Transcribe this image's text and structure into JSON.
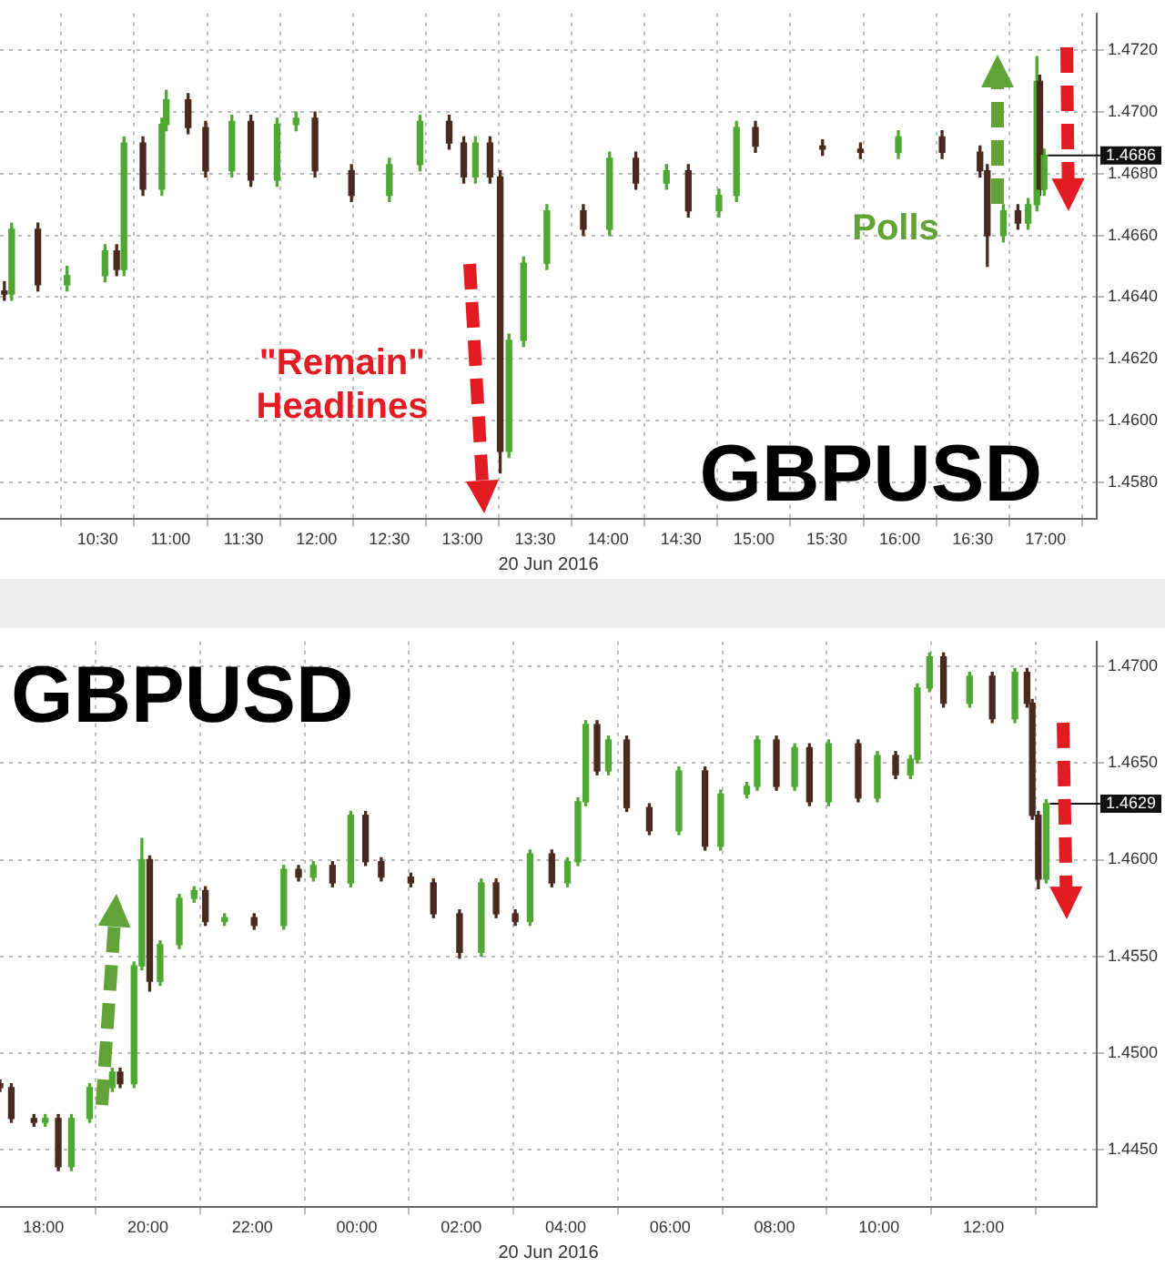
{
  "chart_data": [
    {
      "type": "candlestick",
      "title": "GBPUSD",
      "xlabel": "20 Jun 2016",
      "grid": true,
      "annotations": [
        "\"Remain\" Headlines",
        "Polls",
        {
          "text": "1.4686",
          "x": 16.99,
          "y": 1.4686
        }
      ],
      "xlim": [
        9.83,
        17.35
      ],
      "xticks": [
        {
          "value": 10.5,
          "label": "10:30"
        },
        {
          "value": 11,
          "label": "11:00"
        },
        {
          "value": 11.5,
          "label": "11:30"
        },
        {
          "value": 12,
          "label": "12:00"
        },
        {
          "value": 12.5,
          "label": "12:30"
        },
        {
          "value": 13,
          "label": "13:00"
        },
        {
          "value": 13.5,
          "label": "13:30"
        },
        {
          "value": 14,
          "label": "14:00"
        },
        {
          "value": 14.5,
          "label": "14:30"
        },
        {
          "value": 15,
          "label": "15:00"
        },
        {
          "value": 15.5,
          "label": "15:30"
        },
        {
          "value": 16,
          "label": "16:00"
        },
        {
          "value": 16.5,
          "label": "16:30"
        },
        {
          "value": 17,
          "label": "17:00"
        }
      ],
      "ylim": [
        1.4568,
        1.4732
      ],
      "yticks": [
        {
          "value": 1.458,
          "label": "1.4580"
        },
        {
          "value": 1.46,
          "label": "1.4600"
        },
        {
          "value": 1.462,
          "label": "1.4620"
        },
        {
          "value": 1.464,
          "label": "1.4640"
        },
        {
          "value": 1.466,
          "label": "1.4660"
        },
        {
          "value": 1.468,
          "label": "1.4680"
        },
        {
          "value": 1.47,
          "label": "1.4700"
        },
        {
          "value": 1.472,
          "label": "1.4720"
        }
      ],
      "x": [
        9.86,
        9.91,
        10.09,
        10.29,
        10.55,
        10.63,
        10.68,
        10.81,
        10.94,
        10.97,
        11.12,
        11.24,
        11.42,
        11.55,
        11.73,
        11.86,
        11.99,
        12.24,
        12.5,
        12.71,
        12.91,
        13.01,
        13.09,
        13.19,
        13.26,
        13.32,
        13.42,
        13.58,
        13.83,
        14.01,
        14.19,
        14.4,
        14.55,
        14.76,
        14.88,
        15.01,
        15.47,
        15.73,
        15.99,
        16.29,
        16.55,
        16.6,
        16.71,
        16.81,
        16.88,
        16.94,
        16.96,
        16.99
      ],
      "ohlc": [
        [
          1.4642,
          1.4645,
          1.4639,
          1.4641
        ],
        [
          1.4641,
          1.4664,
          1.4639,
          1.4662
        ],
        [
          1.4662,
          1.4664,
          1.4642,
          1.4644
        ],
        [
          1.4644,
          1.465,
          1.4642,
          1.4647
        ],
        [
          1.4647,
          1.4657,
          1.4645,
          1.4655
        ],
        [
          1.4655,
          1.4657,
          1.4647,
          1.4649
        ],
        [
          1.4649,
          1.4692,
          1.4647,
          1.469
        ],
        [
          1.469,
          1.4692,
          1.4673,
          1.4675
        ],
        [
          1.4675,
          1.4698,
          1.4673,
          1.4696
        ],
        [
          1.4696,
          1.4707,
          1.4694,
          1.4704
        ],
        [
          1.4704,
          1.4706,
          1.4693,
          1.4695
        ],
        [
          1.4695,
          1.4697,
          1.4679,
          1.4681
        ],
        [
          1.4681,
          1.4699,
          1.4679,
          1.4697
        ],
        [
          1.4697,
          1.4699,
          1.4676,
          1.4678
        ],
        [
          1.4678,
          1.4698,
          1.4676,
          1.4696
        ],
        [
          1.4696,
          1.47,
          1.4694,
          1.4698
        ],
        [
          1.4698,
          1.47,
          1.4679,
          1.4681
        ],
        [
          1.4681,
          1.4683,
          1.4671,
          1.4673
        ],
        [
          1.4673,
          1.4685,
          1.4671,
          1.4683
        ],
        [
          1.4683,
          1.4699,
          1.4681,
          1.4697
        ],
        [
          1.4697,
          1.4699,
          1.4688,
          1.469
        ],
        [
          1.469,
          1.4692,
          1.4677,
          1.4679
        ],
        [
          1.4679,
          1.4692,
          1.4677,
          1.469
        ],
        [
          1.469,
          1.4692,
          1.4677,
          1.4679
        ],
        [
          1.4679,
          1.4681,
          1.4583,
          1.459
        ],
        [
          1.459,
          1.4628,
          1.4588,
          1.4626
        ],
        [
          1.4626,
          1.4653,
          1.4624,
          1.4651
        ],
        [
          1.4651,
          1.467,
          1.4649,
          1.4668
        ],
        [
          1.4668,
          1.467,
          1.466,
          1.4662
        ],
        [
          1.4662,
          1.4687,
          1.466,
          1.4685
        ],
        [
          1.4685,
          1.4687,
          1.4675,
          1.4677
        ],
        [
          1.4677,
          1.4683,
          1.4675,
          1.4681
        ],
        [
          1.4681,
          1.4683,
          1.4666,
          1.4668
        ],
        [
          1.4668,
          1.4675,
          1.4666,
          1.4673
        ],
        [
          1.4673,
          1.4697,
          1.4671,
          1.4695
        ],
        [
          1.4695,
          1.4697,
          1.4687,
          1.4689
        ],
        [
          1.4689,
          1.4691,
          1.4686,
          1.4688
        ],
        [
          1.4688,
          1.469,
          1.4685,
          1.4687
        ],
        [
          1.4687,
          1.4694,
          1.4685,
          1.4692
        ],
        [
          1.4692,
          1.4694,
          1.4685,
          1.4687
        ],
        [
          1.4687,
          1.4689,
          1.4679,
          1.4681
        ],
        [
          1.4681,
          1.4683,
          1.465,
          1.466
        ],
        [
          1.466,
          1.467,
          1.4658,
          1.4668
        ],
        [
          1.4668,
          1.467,
          1.4662,
          1.4664
        ],
        [
          1.4664,
          1.4672,
          1.4662,
          1.467
        ],
        [
          1.467,
          1.4718,
          1.4668,
          1.471
        ],
        [
          1.471,
          1.4712,
          1.4673,
          1.4675
        ],
        [
          1.4675,
          1.4688,
          1.4673,
          1.4686
        ]
      ]
    },
    {
      "type": "candlestick",
      "title": "GBPUSD",
      "xlabel": "20 Jun 2016",
      "grid": true,
      "annotations": [
        {
          "text": "1.4629",
          "x": "2016-06-20T13:12",
          "y": 1.4629
        }
      ],
      "xlim": [
        "2016-06-19T17:10",
        "2016-06-20T14:10"
      ],
      "xticks": [
        {
          "value": "2016-06-19T18:00",
          "label": "18:00"
        },
        {
          "value": "2016-06-19T20:00",
          "label": "20:00"
        },
        {
          "value": "2016-06-19T22:00",
          "label": "22:00"
        },
        {
          "value": "2016-06-20T00:00",
          "label": "00:00"
        },
        {
          "value": "2016-06-20T02:00",
          "label": "02:00"
        },
        {
          "value": "2016-06-20T04:00",
          "label": "04:00"
        },
        {
          "value": "2016-06-20T06:00",
          "label": "06:00"
        },
        {
          "value": "2016-06-20T08:00",
          "label": "08:00"
        },
        {
          "value": "2016-06-20T10:00",
          "label": "10:00"
        },
        {
          "value": "2016-06-20T12:00",
          "label": "12:00"
        }
      ],
      "ylim": [
        1.442,
        1.4713
      ],
      "yticks": [
        {
          "value": 1.445,
          "label": "1.4450"
        },
        {
          "value": 1.45,
          "label": "1.4500"
        },
        {
          "value": 1.455,
          "label": "1.4550"
        },
        {
          "value": 1.46,
          "label": "1.4600"
        },
        {
          "value": 1.465,
          "label": "1.4650"
        },
        {
          "value": 1.47,
          "label": "1.4700"
        }
      ],
      "x": [
        "2016-06-19T17:10",
        "2016-06-19T17:23",
        "2016-06-19T17:49",
        "2016-06-19T18:02",
        "2016-06-19T18:17",
        "2016-06-19T18:32",
        "2016-06-19T18:53",
        "2016-06-19T19:19",
        "2016-06-19T19:28",
        "2016-06-19T19:44",
        "2016-06-19T19:53",
        "2016-06-19T20:02",
        "2016-06-19T20:14",
        "2016-06-19T20:36",
        "2016-06-19T20:53",
        "2016-06-19T21:06",
        "2016-06-19T21:28",
        "2016-06-19T22:02",
        "2016-06-19T22:36",
        "2016-06-19T22:53",
        "2016-06-19T23:10",
        "2016-06-19T23:32",
        "2016-06-19T23:53",
        "2016-06-20T00:10",
        "2016-06-20T00:28",
        "2016-06-20T01:02",
        "2016-06-20T01:28",
        "2016-06-20T01:58",
        "2016-06-20T02:23",
        "2016-06-20T02:40",
        "2016-06-20T03:02",
        "2016-06-20T03:19",
        "2016-06-20T03:44",
        "2016-06-20T04:02",
        "2016-06-20T04:14",
        "2016-06-20T04:23",
        "2016-06-20T04:36",
        "2016-06-20T04:49",
        "2016-06-20T05:10",
        "2016-06-20T05:36",
        "2016-06-20T06:10",
        "2016-06-20T06:40",
        "2016-06-20T06:58",
        "2016-06-20T07:28",
        "2016-06-20T07:40",
        "2016-06-20T08:02",
        "2016-06-20T08:23",
        "2016-06-20T08:40",
        "2016-06-20T09:02",
        "2016-06-20T09:36",
        "2016-06-20T09:58",
        "2016-06-20T10:19",
        "2016-06-20T10:36",
        "2016-06-20T10:44",
        "2016-06-20T10:58",
        "2016-06-20T11:14",
        "2016-06-20T11:44",
        "2016-06-20T12:10",
        "2016-06-20T12:36",
        "2016-06-20T12:50",
        "2016-06-20T12:56",
        "2016-06-20T13:03",
        "2016-06-20T13:12"
      ],
      "ohlc": [
        [
          1.4484,
          1.4486,
          1.448,
          1.4482
        ],
        [
          1.4482,
          1.4484,
          1.4464,
          1.4466
        ],
        [
          1.4466,
          1.4468,
          1.4462,
          1.4464
        ],
        [
          1.4464,
          1.4468,
          1.4462,
          1.4466
        ],
        [
          1.4466,
          1.4468,
          1.4439,
          1.4441
        ],
        [
          1.4441,
          1.4468,
          1.4439,
          1.4466
        ],
        [
          1.4466,
          1.4484,
          1.4464,
          1.4482
        ],
        [
          1.4482,
          1.4492,
          1.448,
          1.449
        ],
        [
          1.449,
          1.4492,
          1.4482,
          1.4484
        ],
        [
          1.4484,
          1.4547,
          1.4482,
          1.4545
        ],
        [
          1.4545,
          1.4611,
          1.4543,
          1.46
        ],
        [
          1.46,
          1.4602,
          1.4532,
          1.4537
        ],
        [
          1.4537,
          1.4558,
          1.4535,
          1.4556
        ],
        [
          1.4556,
          1.4582,
          1.4554,
          1.458
        ],
        [
          1.458,
          1.4586,
          1.4578,
          1.4584
        ],
        [
          1.4584,
          1.4586,
          1.4566,
          1.4568
        ],
        [
          1.4568,
          1.4572,
          1.4566,
          1.457
        ],
        [
          1.457,
          1.4572,
          1.4564,
          1.4566
        ],
        [
          1.4566,
          1.4597,
          1.4564,
          1.4595
        ],
        [
          1.4595,
          1.4597,
          1.4589,
          1.4591
        ],
        [
          1.4591,
          1.4599,
          1.4589,
          1.4597
        ],
        [
          1.4597,
          1.4599,
          1.4586,
          1.4588
        ],
        [
          1.4588,
          1.4625,
          1.4586,
          1.4623
        ],
        [
          1.4623,
          1.4625,
          1.4597,
          1.4599
        ],
        [
          1.4599,
          1.4601,
          1.4589,
          1.4591
        ],
        [
          1.4591,
          1.4593,
          1.4586,
          1.4588
        ],
        [
          1.4588,
          1.459,
          1.457,
          1.4572
        ],
        [
          1.4572,
          1.4574,
          1.4549,
          1.4552
        ],
        [
          1.4552,
          1.459,
          1.455,
          1.4588
        ],
        [
          1.4588,
          1.459,
          1.457,
          1.4572
        ],
        [
          1.4572,
          1.4574,
          1.4566,
          1.4568
        ],
        [
          1.4568,
          1.4605,
          1.4566,
          1.4603
        ],
        [
          1.4603,
          1.4605,
          1.4586,
          1.4588
        ],
        [
          1.4588,
          1.4601,
          1.4586,
          1.4599
        ],
        [
          1.4599,
          1.4632,
          1.4597,
          1.463
        ],
        [
          1.463,
          1.4672,
          1.4628,
          1.467
        ],
        [
          1.467,
          1.4672,
          1.4644,
          1.4646
        ],
        [
          1.4646,
          1.4664,
          1.4644,
          1.4662
        ],
        [
          1.4662,
          1.4664,
          1.4625,
          1.4627
        ],
        [
          1.4627,
          1.4629,
          1.4613,
          1.4615
        ],
        [
          1.4615,
          1.4648,
          1.4613,
          1.4646
        ],
        [
          1.4646,
          1.4648,
          1.4605,
          1.4607
        ],
        [
          1.4607,
          1.4636,
          1.4605,
          1.4634
        ],
        [
          1.4634,
          1.464,
          1.4632,
          1.4638
        ],
        [
          1.4638,
          1.4664,
          1.4636,
          1.4662
        ],
        [
          1.4662,
          1.4664,
          1.4636,
          1.4638
        ],
        [
          1.4638,
          1.466,
          1.4636,
          1.4658
        ],
        [
          1.4658,
          1.466,
          1.4628,
          1.463
        ],
        [
          1.463,
          1.4662,
          1.4628,
          1.466
        ],
        [
          1.466,
          1.4662,
          1.463,
          1.4632
        ],
        [
          1.4632,
          1.4656,
          1.463,
          1.4654
        ],
        [
          1.4654,
          1.4656,
          1.4642,
          1.4644
        ],
        [
          1.4644,
          1.4654,
          1.4642,
          1.4652
        ],
        [
          1.4652,
          1.4691,
          1.465,
          1.4689
        ],
        [
          1.4689,
          1.4707,
          1.4687,
          1.4705
        ],
        [
          1.4705,
          1.4707,
          1.4679,
          1.4681
        ],
        [
          1.4681,
          1.4697,
          1.4679,
          1.4695
        ],
        [
          1.4695,
          1.4697,
          1.4671,
          1.4673
        ],
        [
          1.4673,
          1.4699,
          1.4671,
          1.4697
        ],
        [
          1.4697,
          1.4699,
          1.4679,
          1.4681
        ],
        [
          1.4681,
          1.4683,
          1.4621,
          1.4623
        ],
        [
          1.4623,
          1.4625,
          1.4585,
          1.459
        ],
        [
          1.459,
          1.4631,
          1.4588,
          1.4629
        ]
      ]
    }
  ]
}
